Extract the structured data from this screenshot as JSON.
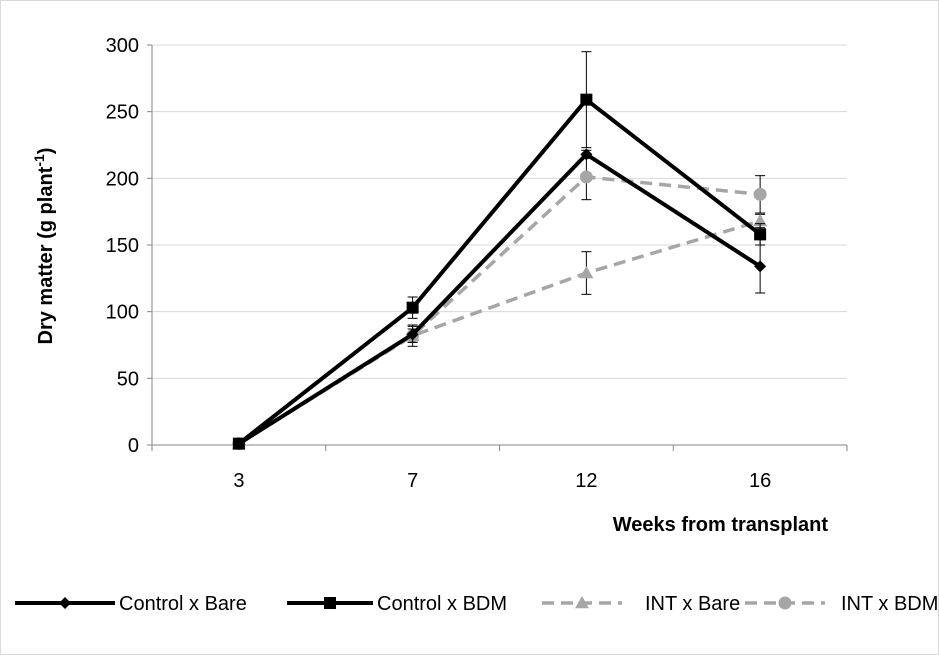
{
  "chart_data": {
    "type": "line",
    "title": "",
    "xlabel": "Weeks from transplant",
    "ylabel": "Dry matter (g plant",
    "ylabel_superscript": "-1",
    "ylabel_suffix": ")",
    "categories": [
      "3",
      "7",
      "12",
      "16"
    ],
    "ylim": [
      0,
      300
    ],
    "yticks": [
      0,
      50,
      100,
      150,
      200,
      250,
      300
    ],
    "grid": "horizontal",
    "legend_position": "bottom",
    "series": [
      {
        "name": "Control x Bare",
        "values": [
          1,
          83,
          218,
          134
        ],
        "errors": [
          1,
          6,
          3,
          20
        ],
        "color": "#000000",
        "dashed": false,
        "marker": "diamond"
      },
      {
        "name": "Control x BDM",
        "values": [
          1,
          103,
          259,
          158
        ],
        "errors": [
          1,
          8,
          36,
          8
        ],
        "color": "#000000",
        "dashed": false,
        "marker": "square"
      },
      {
        "name": "INT x Bare",
        "values": [
          1,
          82,
          129,
          168
        ],
        "errors": [
          1,
          5,
          16,
          5
        ],
        "color": "#a6a6a6",
        "dashed": true,
        "marker": "triangle"
      },
      {
        "name": "INT x BDM",
        "values": [
          1,
          82,
          201,
          188
        ],
        "errors": [
          1,
          8,
          17,
          14
        ],
        "color": "#a6a6a6",
        "dashed": true,
        "marker": "circle"
      }
    ]
  }
}
